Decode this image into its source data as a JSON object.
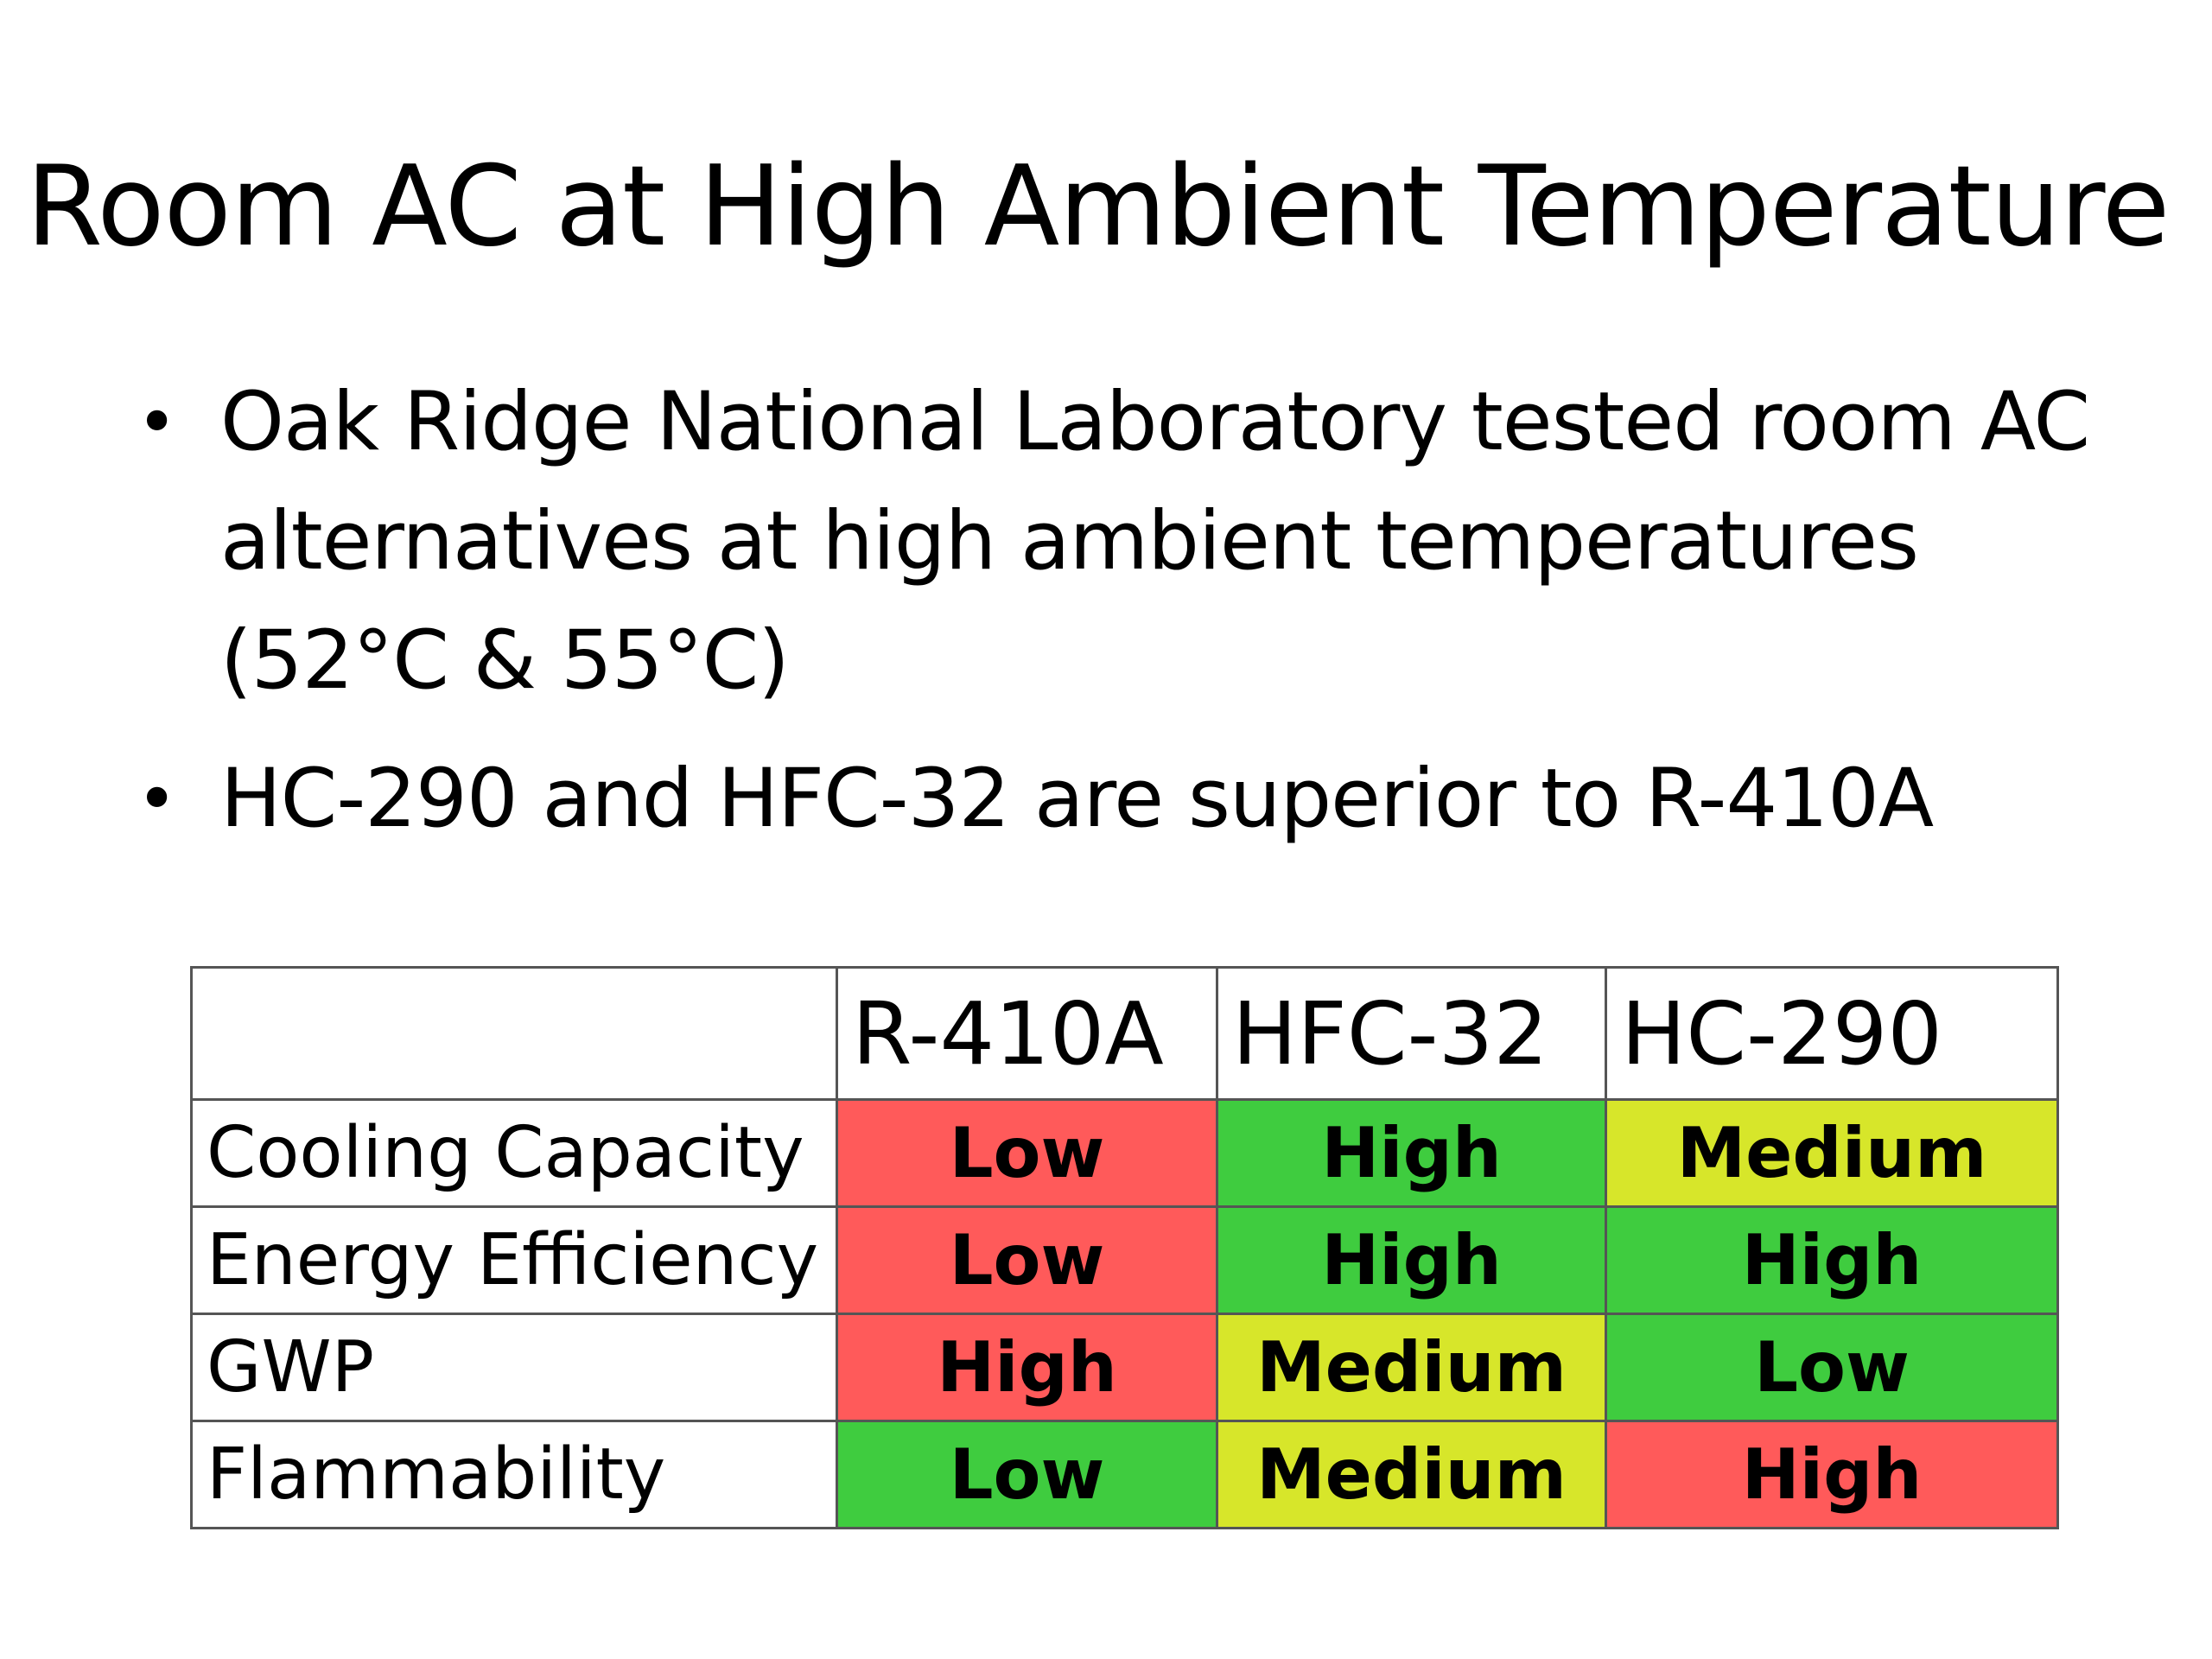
{
  "slide": {
    "title": "Room AC at High Ambient Temperature",
    "bullets": [
      "Oak Ridge National Laboratory tested room AC alternatives at high ambient temperatures (52°C & 55°C)",
      "HC-290 and HFC-32 are superior to R-410A"
    ]
  },
  "colors": {
    "low_rating_red": "#ff5a5a",
    "high_rating_green": "#3fcc3f",
    "medium_rating_yellow": "#d7e62a"
  },
  "table": {
    "headers": [
      "",
      "R-410A",
      "HFC-32",
      "HC-290"
    ],
    "rows": [
      {
        "label": "Cooling Capacity",
        "cells": [
          {
            "text": "Low",
            "color": "#ff5a5a"
          },
          {
            "text": "High",
            "color": "#3fcc3f"
          },
          {
            "text": "Medium",
            "color": "#d7e62a"
          }
        ]
      },
      {
        "label": "Energy Efficiency",
        "cells": [
          {
            "text": "Low",
            "color": "#ff5a5a"
          },
          {
            "text": "High",
            "color": "#3fcc3f"
          },
          {
            "text": "High",
            "color": "#3fcc3f"
          }
        ]
      },
      {
        "label": "GWP",
        "cells": [
          {
            "text": "High",
            "color": "#ff5a5a"
          },
          {
            "text": "Medium",
            "color": "#d7e62a"
          },
          {
            "text": "Low",
            "color": "#3fcc3f"
          }
        ]
      },
      {
        "label": "Flammability",
        "cells": [
          {
            "text": "Low",
            "color": "#3fcc3f"
          },
          {
            "text": "Medium",
            "color": "#d7e62a"
          },
          {
            "text": "High",
            "color": "#ff5a5a"
          }
        ]
      }
    ]
  }
}
